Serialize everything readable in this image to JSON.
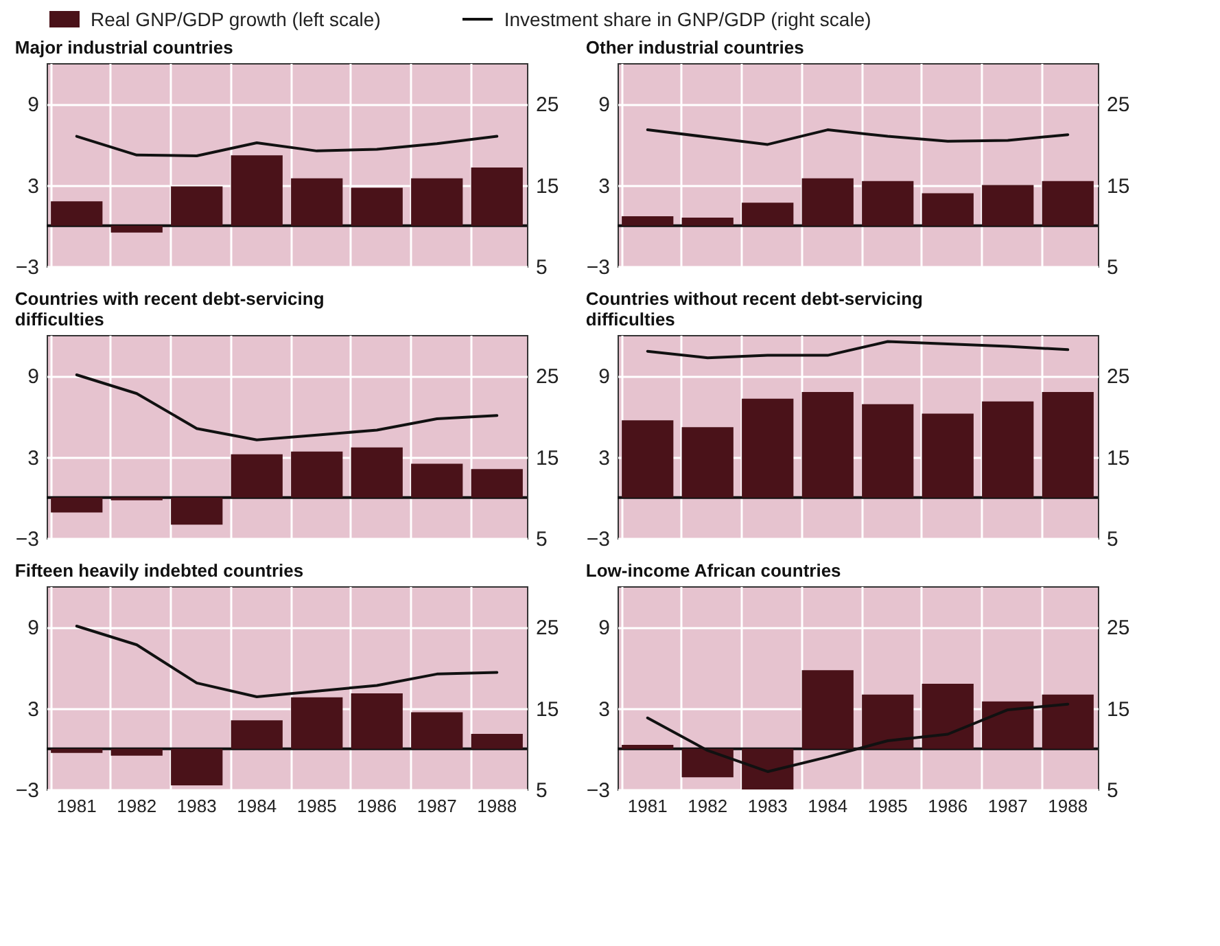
{
  "chart_data": [
    {
      "type": "bar",
      "title": "Major industrial countries",
      "categories": [
        "1981",
        "1982",
        "1983",
        "1984",
        "1985",
        "1986",
        "1987",
        "1988"
      ],
      "series": [
        {
          "name": "Real GNP/GDP growth (left scale)",
          "color": "#4a1219",
          "values": [
            1.8,
            -0.5,
            2.9,
            5.2,
            3.5,
            2.8,
            3.5,
            4.3
          ]
        },
        {
          "name": "Investment share in GNP/GDP (right scale)",
          "type": "line",
          "axis": "y2",
          "color": "#111111",
          "values": [
            21.0,
            18.7,
            18.6,
            20.2,
            19.2,
            19.4,
            20.1,
            21.0
          ]
        }
      ],
      "ylim": [
        -3,
        12
      ],
      "yticks": [
        -3,
        3,
        9
      ],
      "y2lim": [
        5,
        30
      ],
      "y2ticks": [
        5,
        15,
        25
      ],
      "ref_lines": [
        {
          "axis": "y",
          "value": 0,
          "color": "#111111"
        }
      ],
      "grid": true,
      "legend": "top",
      "tick_labels": "y"
    },
    {
      "type": "bar",
      "title": "Other industrial countries",
      "categories": [
        "1981",
        "1982",
        "1983",
        "1984",
        "1985",
        "1986",
        "1987",
        "1988"
      ],
      "series": [
        {
          "color": "#4a1219",
          "values": [
            0.7,
            0.6,
            1.7,
            3.5,
            3.3,
            2.4,
            3.0,
            3.3
          ]
        },
        {
          "type": "line",
          "axis": "y2",
          "color": "#111111",
          "values": [
            21.8,
            20.9,
            20.0,
            21.8,
            21.0,
            20.4,
            20.5,
            21.2
          ]
        }
      ],
      "ylim": [
        -3,
        12
      ],
      "yticks": [
        -3,
        3,
        9
      ],
      "y2lim": [
        5,
        30
      ],
      "y2ticks": [
        5,
        15,
        25
      ],
      "ref_lines": [
        {
          "axis": "y",
          "value": 0,
          "color": "#111111"
        }
      ],
      "grid": true,
      "tick_labels": "y"
    },
    {
      "type": "bar",
      "title": "Countries with recent debt-servicing difficulties",
      "categories": [
        "1981",
        "1982",
        "1983",
        "1984",
        "1985",
        "1986",
        "1987",
        "1988"
      ],
      "series": [
        {
          "color": "#4a1219",
          "values": [
            -1.1,
            -0.2,
            -2.0,
            3.2,
            3.4,
            3.7,
            2.5,
            2.1
          ]
        },
        {
          "type": "line",
          "axis": "y2",
          "color": "#111111",
          "values": [
            25.1,
            22.8,
            18.5,
            17.1,
            17.7,
            18.3,
            19.7,
            20.1
          ]
        }
      ],
      "ylim": [
        -3,
        12
      ],
      "yticks": [
        -3,
        3,
        9
      ],
      "y2lim": [
        5,
        30
      ],
      "y2ticks": [
        5,
        15,
        25
      ],
      "ref_lines": [
        {
          "axis": "y",
          "value": 0,
          "color": "#111111"
        }
      ],
      "grid": true,
      "tick_labels": "y"
    },
    {
      "type": "bar",
      "title": "Countries without recent debt-servicing difficulties",
      "categories": [
        "1981",
        "1982",
        "1983",
        "1984",
        "1985",
        "1986",
        "1987",
        "1988"
      ],
      "series": [
        {
          "color": "#4a1219",
          "values": [
            5.7,
            5.2,
            7.3,
            7.8,
            6.9,
            6.2,
            7.1,
            7.8
          ]
        },
        {
          "type": "line",
          "axis": "y2",
          "color": "#111111",
          "values": [
            28.0,
            27.2,
            27.5,
            27.5,
            29.2,
            28.9,
            28.6,
            28.2
          ]
        }
      ],
      "ylim": [
        -3,
        12
      ],
      "yticks": [
        -3,
        3,
        9
      ],
      "y2lim": [
        5,
        30
      ],
      "y2ticks": [
        5,
        15,
        25
      ],
      "ref_lines": [
        {
          "axis": "y",
          "value": 0,
          "color": "#111111"
        }
      ],
      "grid": true,
      "tick_labels": "y"
    },
    {
      "type": "bar",
      "title": "Fifteen heavily indebted countries",
      "categories": [
        "1981",
        "1982",
        "1983",
        "1984",
        "1985",
        "1986",
        "1987",
        "1988"
      ],
      "series": [
        {
          "color": "#4a1219",
          "values": [
            -0.3,
            -0.5,
            -2.7,
            2.1,
            3.8,
            4.1,
            2.7,
            1.1
          ]
        },
        {
          "type": "line",
          "axis": "y2",
          "color": "#111111",
          "values": [
            25.1,
            22.8,
            18.1,
            16.4,
            17.1,
            17.8,
            19.2,
            19.4
          ]
        }
      ],
      "ylim": [
        -3,
        12
      ],
      "yticks": [
        -3,
        3,
        9
      ],
      "y2lim": [
        5,
        30
      ],
      "y2ticks": [
        5,
        15,
        25
      ],
      "ref_lines": [
        {
          "axis": "y",
          "value": 0,
          "color": "#111111"
        }
      ],
      "grid": true
    },
    {
      "type": "bar",
      "title": "Low-income African countries",
      "categories": [
        "1981",
        "1982",
        "1983",
        "1984",
        "1985",
        "1986",
        "1987",
        "1988"
      ],
      "series": [
        {
          "color": "#4a1219",
          "values": [
            0.3,
            -2.1,
            -3.0,
            5.8,
            4.0,
            4.8,
            3.5,
            4.0
          ]
        },
        {
          "type": "line",
          "axis": "y2",
          "color": "#111111",
          "values": [
            13.8,
            9.8,
            7.2,
            9.0,
            11.0,
            11.8,
            14.8,
            15.5
          ]
        }
      ],
      "ylim": [
        -3,
        12
      ],
      "yticks": [
        -3,
        3,
        9
      ],
      "y2lim": [
        5,
        30
      ],
      "y2ticks": [
        5,
        15,
        25
      ],
      "ref_lines": [
        {
          "axis": "y",
          "value": 0,
          "color": "#111111"
        }
      ],
      "grid": true
    }
  ]
}
